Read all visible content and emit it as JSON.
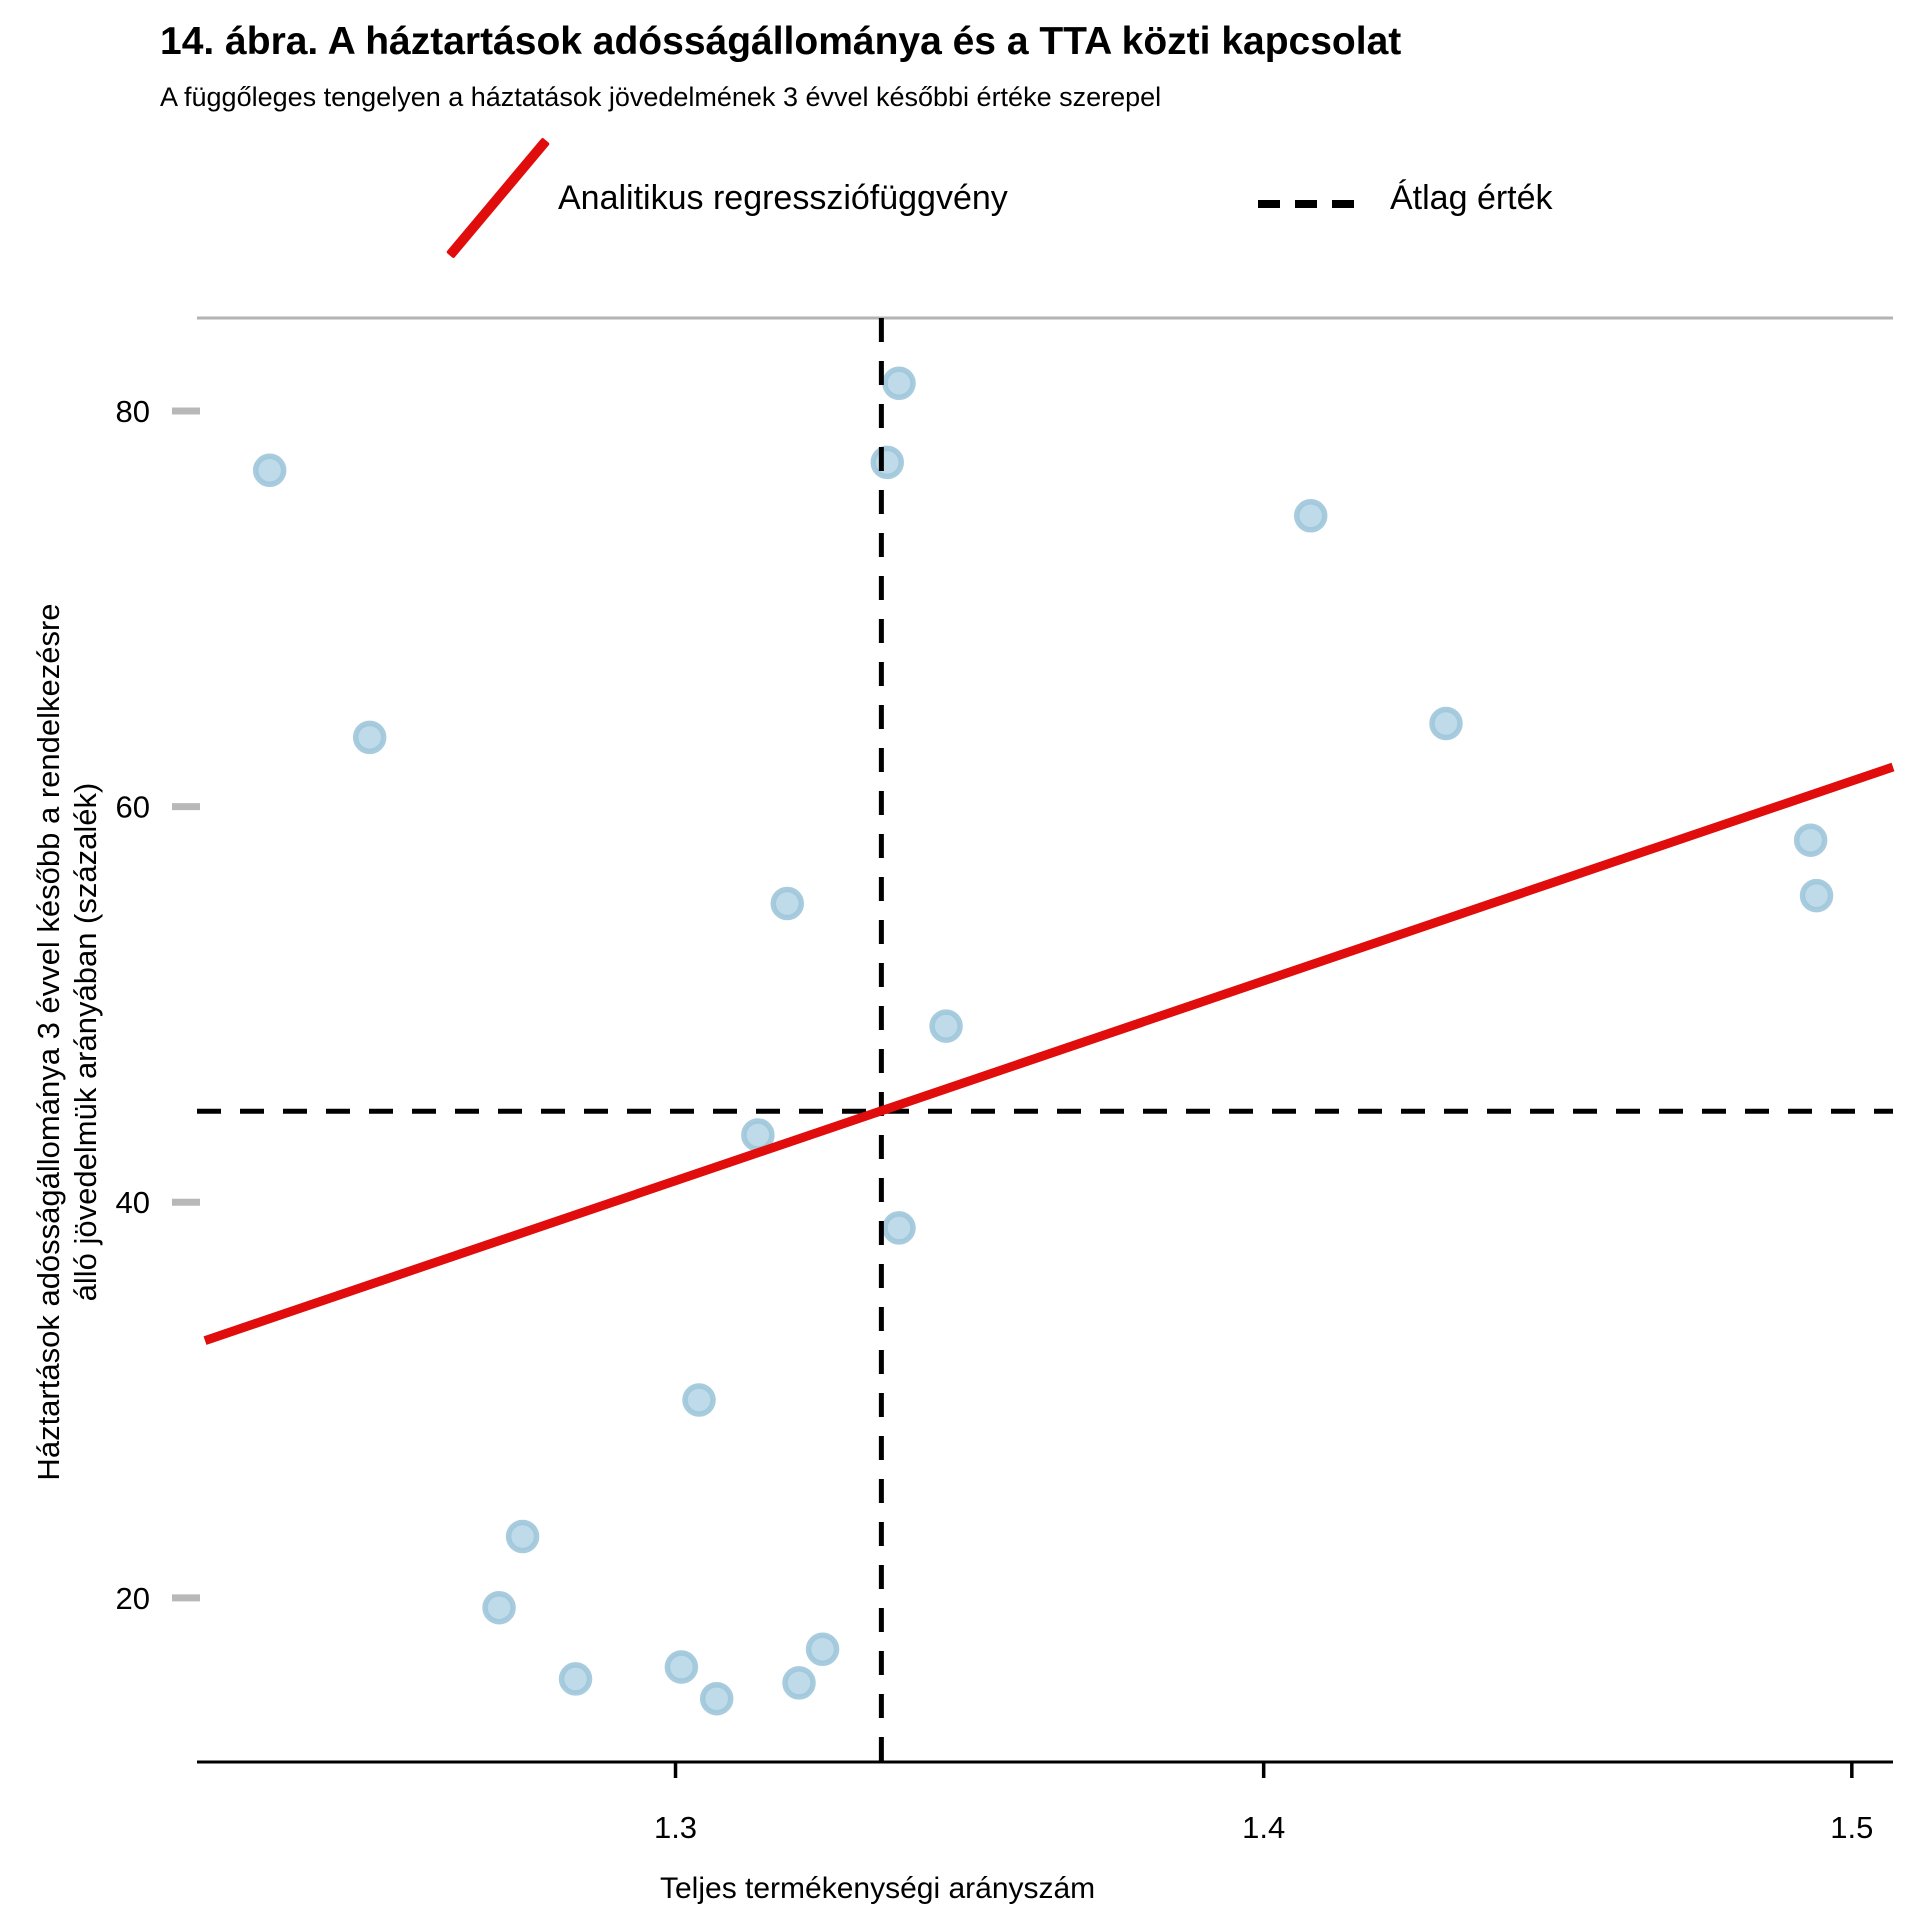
{
  "chart_data": {
    "type": "scatter",
    "title": "14. ábra. A háztartások adósságállománya és a TTA közti kapcsolat",
    "subtitle": "A függőleges tengelyen a háztatások jövedelmének 3 évvel későbbi értéke szerepel",
    "xlabel": "Teljes termékenységi arányszám",
    "ylabel": [
      "Háztartások adósságállománya 3 évvel később a rendelkezésre",
      "álló jövedelmük arányában (százalék)"
    ],
    "legend": [
      {
        "label": "Analitikus regressziófüggvény",
        "type": "regression-line",
        "color": "#e10c0c"
      },
      {
        "label": "Átlag érték",
        "type": "dashed-line",
        "color": "#000000"
      }
    ],
    "x_ticks": [
      1.3,
      1.4,
      1.5
    ],
    "y_ticks": [
      80,
      60,
      40,
      20
    ],
    "xlim": [
      1.22,
      1.507
    ],
    "ylim": [
      11.7,
      84.7
    ],
    "grid": "off",
    "legend_position": "top",
    "points": [
      [
        1.231,
        77.0
      ],
      [
        1.248,
        63.5
      ],
      [
        1.27,
        19.5
      ],
      [
        1.274,
        23.1
      ],
      [
        1.283,
        15.9
      ],
      [
        1.301,
        16.5
      ],
      [
        1.304,
        30.0
      ],
      [
        1.307,
        14.9
      ],
      [
        1.314,
        43.4
      ],
      [
        1.319,
        55.1
      ],
      [
        1.321,
        15.7
      ],
      [
        1.325,
        17.4
      ],
      [
        1.336,
        77.4
      ],
      [
        1.338,
        81.4
      ],
      [
        1.338,
        38.7
      ],
      [
        1.346,
        48.9
      ],
      [
        1.408,
        74.7
      ],
      [
        1.431,
        64.2
      ],
      [
        1.493,
        58.3
      ],
      [
        1.494,
        55.5
      ]
    ],
    "regression_line": {
      "x1": 1.22,
      "y1": 33.0,
      "x2": 1.507,
      "y2": 62.0
    },
    "mean_x": 1.335,
    "mean_y": 44.6,
    "colors": {
      "point_fill": "#bcd9e8",
      "point_stroke": "#9fc6da",
      "regression": "#e10c0c",
      "dashed": "#000000",
      "axis": "#000000",
      "panel_border": "#b3b3b3",
      "y_tick": "#b8b8b8"
    }
  }
}
